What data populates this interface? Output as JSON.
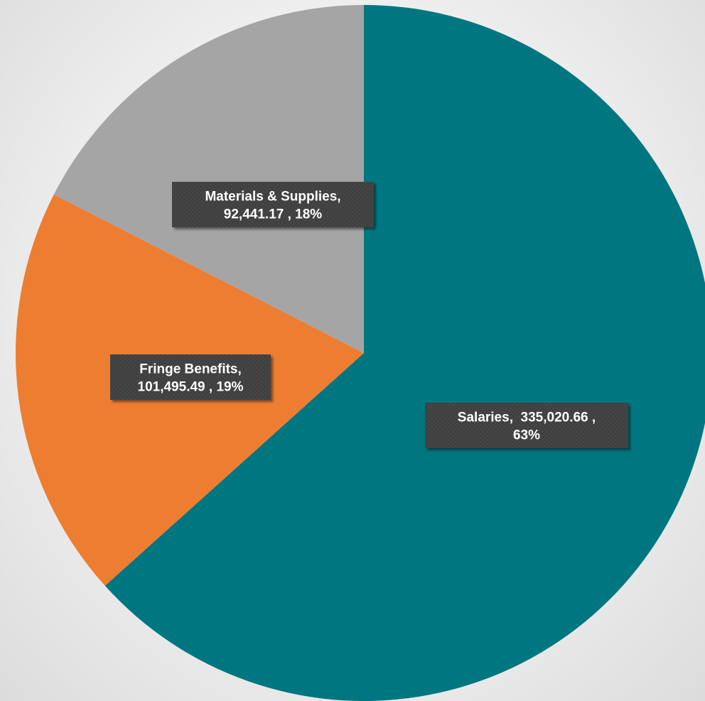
{
  "chart_data": {
    "type": "pie",
    "start_angle_deg": 0,
    "direction": "clockwise",
    "slices": [
      {
        "name": "Salaries",
        "value": 335020.66,
        "percent": 63,
        "color": "#007681",
        "label_lines": [
          "Salaries,  335,020.66 ,",
          "63%"
        ]
      },
      {
        "name": "Fringe Benefits",
        "value": 101495.49,
        "percent": 19,
        "color": "#ed7d31",
        "label_lines": [
          "Fringe Benefits,",
          "101,495.49 , 19%"
        ]
      },
      {
        "name": "Materials & Supplies",
        "value": 92441.17,
        "percent": 18,
        "color": "#a5a5a5",
        "label_lines": [
          "Materials & Supplies,",
          "92,441.17 , 18%"
        ]
      }
    ],
    "legend": "none"
  }
}
